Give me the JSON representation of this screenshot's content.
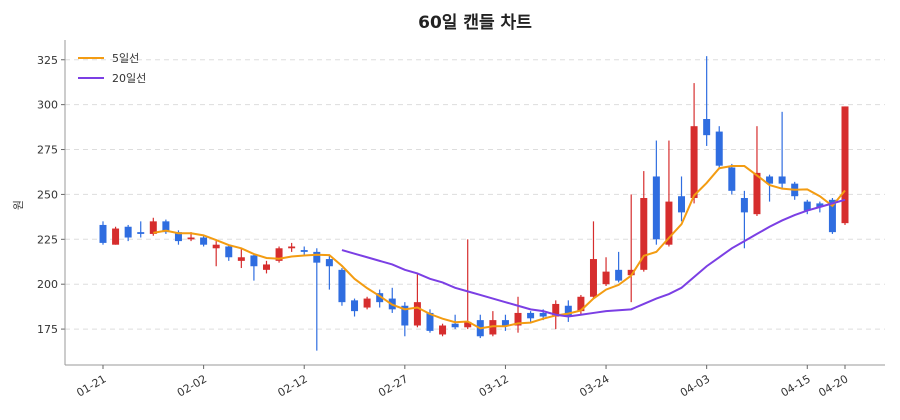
{
  "chart_data": {
    "type": "candlestick",
    "title": "60일 캔들 차트",
    "y_label": "원",
    "categories": [
      "01-21",
      null,
      null,
      null,
      null,
      null,
      null,
      null,
      "02-02",
      null,
      null,
      null,
      null,
      null,
      null,
      null,
      "02-12",
      null,
      null,
      null,
      null,
      null,
      null,
      null,
      "02-27",
      null,
      null,
      null,
      null,
      null,
      null,
      null,
      "03-12",
      null,
      null,
      null,
      null,
      null,
      null,
      null,
      "03-24",
      null,
      null,
      null,
      null,
      null,
      null,
      null,
      "04-03",
      null,
      null,
      null,
      null,
      null,
      null,
      null,
      "04-15",
      null,
      null,
      "04-20"
    ],
    "open": [
      233,
      222,
      232,
      229,
      228,
      235,
      229,
      225,
      226,
      220,
      221,
      213,
      216,
      208,
      213,
      220,
      219,
      218,
      214,
      208,
      191,
      187,
      195,
      192,
      188,
      177,
      184,
      172,
      178,
      176,
      180,
      172,
      180,
      177,
      184,
      184,
      182,
      188,
      185,
      193,
      200,
      208,
      205,
      208,
      260,
      222,
      249,
      248,
      292,
      285,
      265,
      248,
      239,
      260,
      260,
      256,
      246,
      245,
      247,
      234
    ],
    "high": [
      235,
      232,
      233,
      235,
      237,
      236,
      230,
      229,
      227,
      224,
      222,
      220,
      217,
      213,
      221,
      223,
      221,
      220,
      216,
      209,
      192,
      193,
      197,
      198,
      190,
      206,
      186,
      178,
      183,
      225,
      183,
      185,
      183,
      193,
      185,
      186,
      191,
      191,
      194,
      235,
      215,
      218,
      250,
      263,
      280,
      280,
      260,
      312,
      327,
      288,
      267,
      252,
      288,
      261,
      296,
      257,
      247,
      246,
      248,
      299
    ],
    "low": [
      222,
      222,
      224,
      226,
      227,
      228,
      222,
      224,
      221,
      210,
      213,
      209,
      202,
      206,
      212,
      218,
      216,
      163,
      197,
      188,
      182,
      186,
      187,
      184,
      171,
      176,
      173,
      171,
      175,
      175,
      170,
      171,
      174,
      173,
      179,
      180,
      175,
      179,
      183,
      192,
      199,
      201,
      190,
      207,
      222,
      221,
      235,
      245,
      277,
      264,
      250,
      220,
      238,
      246,
      253,
      247,
      239,
      240,
      228,
      233
    ],
    "close": [
      223,
      231,
      226,
      228,
      235,
      229,
      224,
      226,
      222,
      222,
      215,
      215,
      210,
      211,
      220,
      221,
      218,
      212,
      210,
      190,
      185,
      192,
      190,
      186,
      177,
      190,
      174,
      177,
      176,
      179,
      171,
      180,
      177,
      184,
      181,
      182,
      189,
      182,
      193,
      214,
      207,
      202,
      208,
      248,
      225,
      246,
      240,
      288,
      283,
      266,
      252,
      240,
      262,
      256,
      256,
      249,
      241,
      243,
      229,
      299
    ],
    "up_color": "#d62d2d",
    "down_color": "#2f6de0",
    "series": [
      {
        "name": "5일선",
        "color": "#f39c12",
        "values": [
          null,
          null,
          null,
          null,
          228.6,
          229.8,
          228.4,
          228.4,
          227.2,
          224.6,
          221.8,
          220,
          216.8,
          214.6,
          214.2,
          215.4,
          216,
          216.4,
          216.2,
          210.2,
          203,
          197.8,
          193.4,
          188.6,
          186,
          187,
          183.4,
          180.8,
          178.8,
          179.2,
          175.4,
          176.6,
          176.6,
          178.2,
          178.6,
          180.8,
          182.6,
          183.6,
          185.4,
          192,
          197,
          199.6,
          204.8,
          215.8,
          218,
          225.8,
          233.4,
          249.4,
          256.4,
          264.6,
          265.8,
          265.8,
          260.6,
          255.2,
          253.2,
          252.6,
          252.8,
          249,
          243.6,
          252.2
        ]
      },
      {
        "name": "20일선",
        "color": "#7b3fe4",
        "values": [
          null,
          null,
          null,
          null,
          null,
          null,
          null,
          null,
          null,
          null,
          null,
          null,
          null,
          null,
          null,
          null,
          null,
          null,
          null,
          219,
          217,
          215,
          213,
          211,
          208,
          206,
          203,
          201,
          198,
          196,
          194,
          192,
          190,
          188,
          186,
          185,
          183,
          182,
          183,
          184,
          185,
          185.5,
          186,
          189,
          192,
          194.5,
          198,
          204,
          210,
          215,
          220,
          224,
          228,
          232,
          235.5,
          238.5,
          241,
          243,
          245,
          247
        ]
      }
    ],
    "ylim": [
      155,
      336
    ],
    "yticks": [
      175,
      200,
      225,
      250,
      275,
      300,
      325
    ],
    "grid": true,
    "legend": "upper left"
  }
}
